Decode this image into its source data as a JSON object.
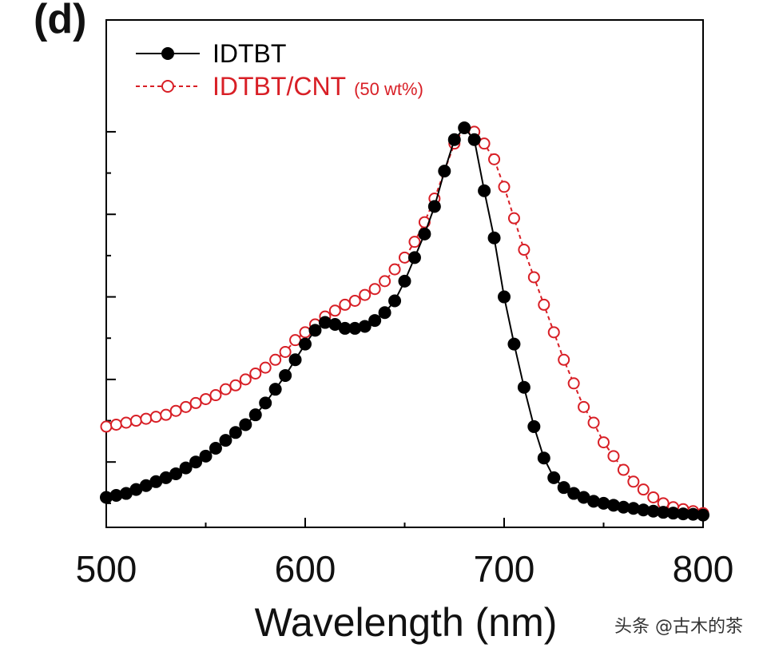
{
  "panel_label": "(d)",
  "watermark": "头条 @古木的茶",
  "colors": {
    "series1": "#000000",
    "series2": "#d81f26",
    "axis": "#000000"
  },
  "chart_data": {
    "type": "line",
    "title": "",
    "xlabel": "Wavelength (nm)",
    "ylabel": "",
    "xlim": [
      500,
      800
    ],
    "ylim": [
      0,
      1.0
    ],
    "xticks": [
      500,
      600,
      700,
      800
    ],
    "xtick_labels": [
      "500",
      "600",
      "700",
      "800"
    ],
    "x_minor_ticks": [
      550,
      650,
      750
    ],
    "yticks": [
      0.15,
      0.36,
      0.57,
      0.78,
      0.99
    ],
    "y_minor_ticks": [
      0.045,
      0.255,
      0.465,
      0.675,
      0.885
    ],
    "grid": false,
    "legend_position": "top-left",
    "series": [
      {
        "name": "IDTBT",
        "marker": "filled-circle",
        "line": "solid",
        "color": "#000000",
        "x": [
          500,
          505,
          510,
          515,
          520,
          525,
          530,
          535,
          540,
          545,
          550,
          555,
          560,
          565,
          570,
          575,
          580,
          585,
          590,
          595,
          600,
          605,
          610,
          615,
          620,
          625,
          630,
          635,
          640,
          645,
          650,
          655,
          660,
          665,
          670,
          675,
          680,
          685,
          690,
          695,
          700,
          705,
          710,
          715,
          720,
          725,
          730,
          735,
          740,
          745,
          750,
          755,
          760,
          765,
          770,
          775,
          780,
          785,
          790,
          795,
          800
        ],
        "y": [
          0.06,
          0.065,
          0.07,
          0.08,
          0.09,
          0.1,
          0.11,
          0.12,
          0.135,
          0.15,
          0.165,
          0.185,
          0.205,
          0.225,
          0.245,
          0.27,
          0.3,
          0.335,
          0.37,
          0.41,
          0.45,
          0.485,
          0.505,
          0.5,
          0.49,
          0.49,
          0.495,
          0.51,
          0.53,
          0.56,
          0.61,
          0.67,
          0.73,
          0.8,
          0.89,
          0.97,
          1.0,
          0.97,
          0.84,
          0.72,
          0.57,
          0.45,
          0.34,
          0.24,
          0.16,
          0.11,
          0.085,
          0.07,
          0.06,
          0.05,
          0.045,
          0.04,
          0.035,
          0.032,
          0.028,
          0.025,
          0.022,
          0.02,
          0.018,
          0.017,
          0.015
        ]
      },
      {
        "name": "IDTBT/CNT",
        "name_suffix": "(50 wt%)",
        "marker": "open-circle",
        "line": "dashed",
        "color": "#d81f26",
        "x": [
          500,
          505,
          510,
          515,
          520,
          525,
          530,
          535,
          540,
          545,
          550,
          555,
          560,
          565,
          570,
          575,
          580,
          585,
          590,
          595,
          600,
          605,
          610,
          615,
          620,
          625,
          630,
          635,
          640,
          645,
          650,
          655,
          660,
          665,
          670,
          675,
          680,
          685,
          690,
          695,
          700,
          705,
          710,
          715,
          720,
          725,
          730,
          735,
          740,
          745,
          750,
          755,
          760,
          765,
          770,
          775,
          780,
          785,
          790,
          795,
          800
        ],
        "y": [
          0.24,
          0.245,
          0.25,
          0.255,
          0.26,
          0.265,
          0.27,
          0.28,
          0.29,
          0.3,
          0.31,
          0.32,
          0.335,
          0.345,
          0.36,
          0.375,
          0.39,
          0.41,
          0.43,
          0.46,
          0.48,
          0.5,
          0.52,
          0.535,
          0.55,
          0.56,
          0.575,
          0.59,
          0.61,
          0.64,
          0.67,
          0.71,
          0.76,
          0.82,
          0.89,
          0.96,
          1.0,
          0.99,
          0.96,
          0.92,
          0.85,
          0.77,
          0.69,
          0.62,
          0.55,
          0.48,
          0.41,
          0.35,
          0.29,
          0.25,
          0.2,
          0.165,
          0.13,
          0.1,
          0.08,
          0.06,
          0.045,
          0.035,
          0.03,
          0.025,
          0.02
        ]
      }
    ]
  }
}
